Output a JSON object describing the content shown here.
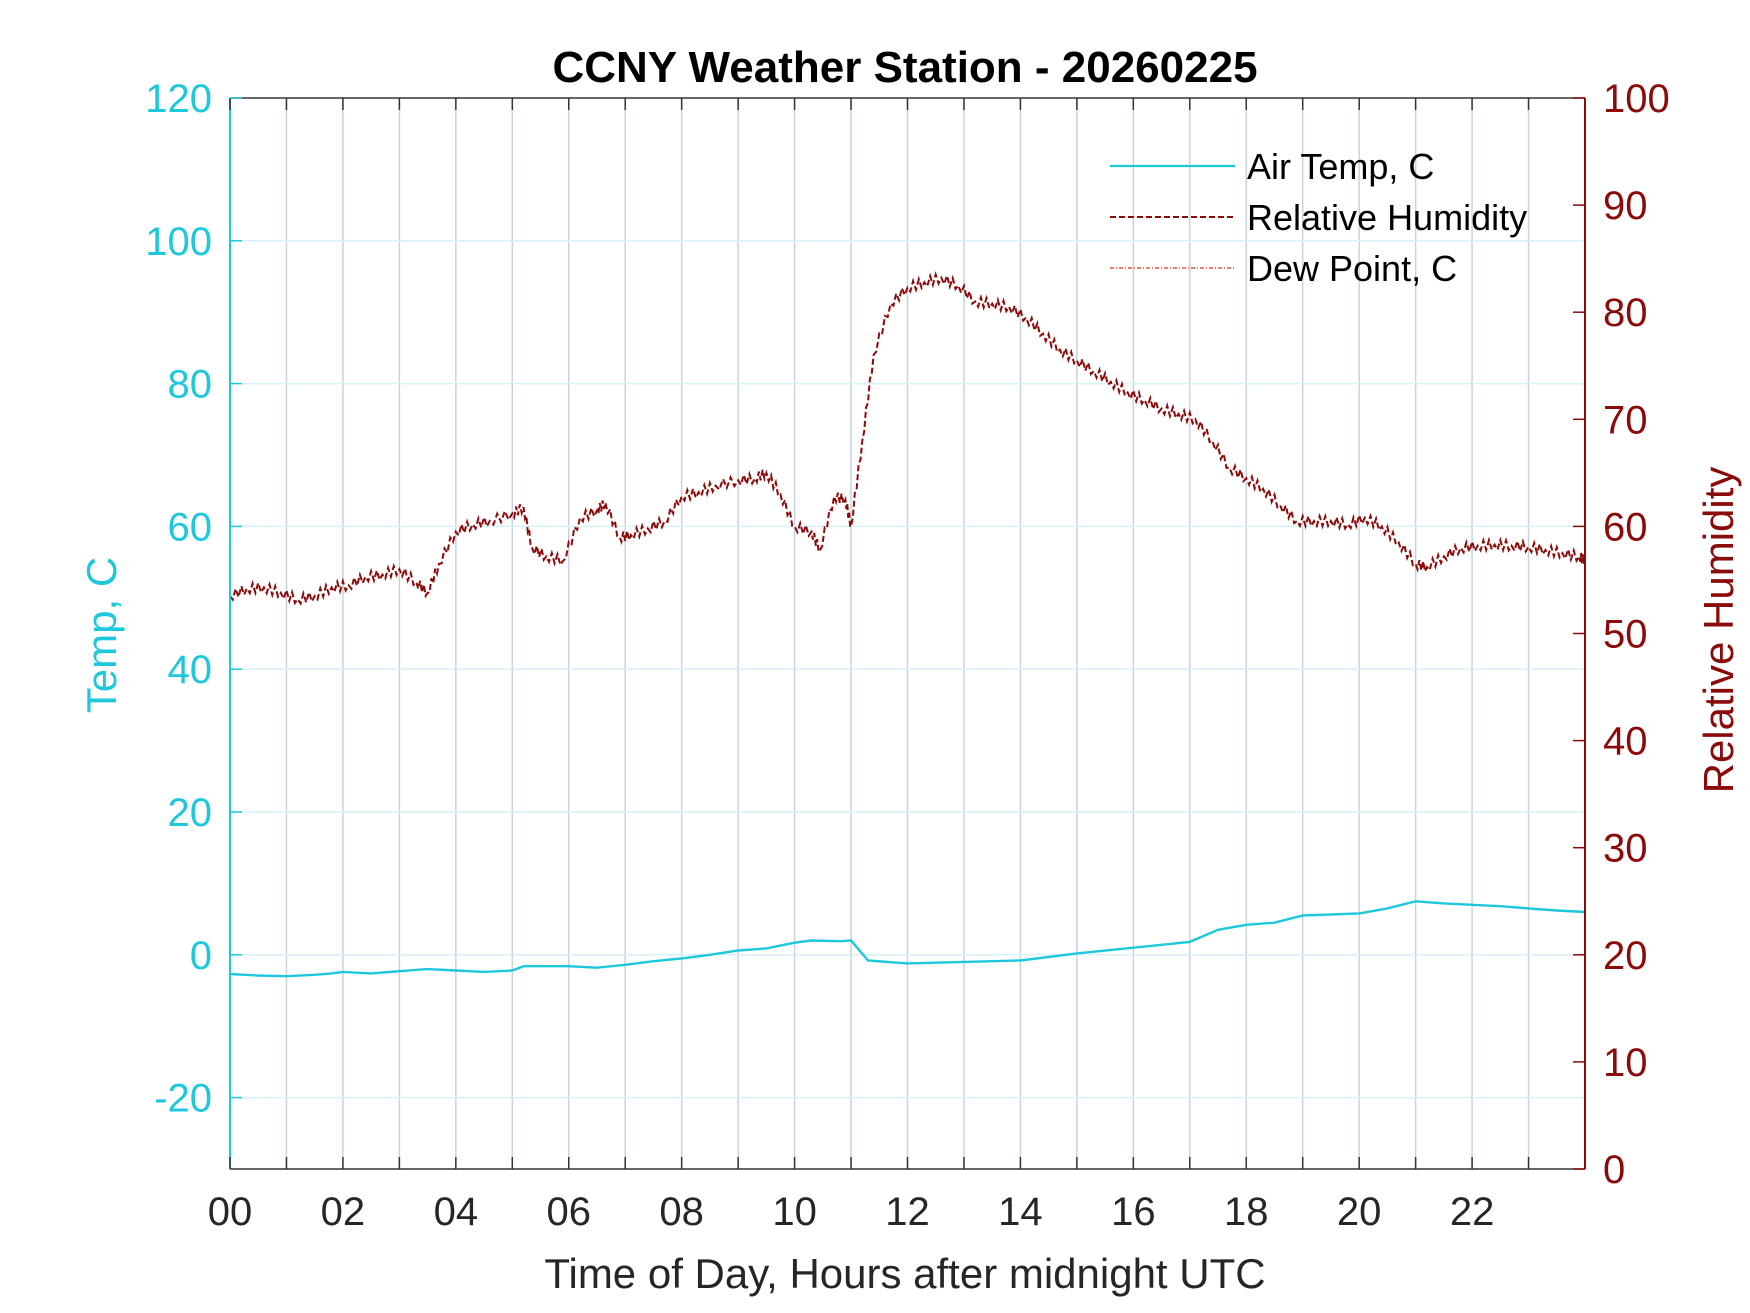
{
  "chart_data": {
    "type": "line",
    "title": "CCNY Weather Station - 20260225",
    "xlabel": "Time of Day, Hours after midnight UTC",
    "ylabel_left": "Temp, C",
    "ylabel_right": "Relative Humidity",
    "xlim": [
      0,
      24
    ],
    "ylim_left": [
      -30,
      120
    ],
    "ylim_right": [
      0,
      100
    ],
    "x_ticks": [
      0,
      2,
      4,
      6,
      8,
      10,
      12,
      14,
      16,
      18,
      20,
      22
    ],
    "x_tick_labels": [
      "00",
      "02",
      "04",
      "06",
      "08",
      "10",
      "12",
      "14",
      "16",
      "18",
      "20",
      "22"
    ],
    "y_left_ticks": [
      -20,
      0,
      20,
      40,
      60,
      80,
      100,
      120
    ],
    "y_left_tick_labels": [
      "-20",
      "0",
      "20",
      "40",
      "60",
      "80",
      "100",
      "120"
    ],
    "y_right_ticks": [
      0,
      10,
      20,
      30,
      40,
      50,
      60,
      70,
      80,
      90,
      100
    ],
    "y_right_tick_labels": [
      "0",
      "10",
      "20",
      "30",
      "40",
      "50",
      "60",
      "70",
      "80",
      "90",
      "100"
    ],
    "grid": true,
    "legend_position": "top-right",
    "colors": {
      "temp": "#1ec8dc",
      "humidity": "#8b0a0a",
      "dewpoint": "#e8503a",
      "grid_vertical": "#c8d4dc",
      "grid_horizontal": "#d6f2f8",
      "axis": "#333333"
    },
    "series": [
      {
        "name": "Air Temp, C",
        "axis": "left",
        "style": "solid",
        "x": [
          0,
          0.5,
          1,
          1.5,
          1.8,
          2,
          2.5,
          3,
          3.5,
          4,
          4.5,
          5,
          5.2,
          6,
          6.5,
          7,
          7.5,
          8,
          8.5,
          9,
          9.5,
          10,
          10.3,
          10.8,
          11,
          11.3,
          12,
          13,
          14,
          15,
          16,
          17,
          17.5,
          18,
          18.5,
          19,
          20,
          20.5,
          21,
          21.5,
          22,
          22.5,
          23,
          23.5,
          24
        ],
        "y": [
          -2.7,
          -2.9,
          -3.0,
          -2.8,
          -2.6,
          -2.4,
          -2.6,
          -2.3,
          -2.0,
          -2.2,
          -2.4,
          -2.2,
          -1.6,
          -1.6,
          -1.8,
          -1.4,
          -0.9,
          -0.5,
          0.0,
          0.6,
          0.9,
          1.7,
          2.0,
          1.9,
          2.0,
          -0.8,
          -1.2,
          -1.0,
          -0.8,
          0.2,
          1.0,
          1.8,
          3.5,
          4.2,
          4.5,
          5.5,
          5.8,
          6.5,
          7.5,
          7.2,
          7.0,
          6.8,
          6.5,
          6.2,
          6.0
        ],
        "samples": [
          -2.7,
          -2.9,
          -3.0,
          -2.8,
          -2.6,
          -2.4,
          -2.6,
          -2.3,
          -2.0,
          -2.2,
          -2.4,
          -2.2,
          -1.6,
          -1.6,
          -1.8,
          -1.4,
          -0.9,
          -0.5,
          0.0,
          0.6,
          0.9,
          1.7,
          2.0,
          1.9,
          2.0,
          -0.8,
          -1.2,
          -1.0,
          -0.8,
          0.2,
          1.0,
          1.8,
          3.5,
          4.2,
          4.5,
          5.5,
          5.8,
          6.5,
          7.5,
          7.2,
          7.0,
          6.8,
          6.5,
          6.2,
          6.0
        ]
      },
      {
        "name": "Relative Humidity",
        "axis": "right",
        "style": "dashed",
        "x": [
          0,
          0.3,
          0.6,
          0.9,
          1.2,
          1.5,
          1.8,
          2.1,
          2.4,
          2.7,
          3.0,
          3.3,
          3.5,
          3.7,
          4.0,
          4.3,
          4.6,
          5.0,
          5.2,
          5.35,
          5.6,
          5.9,
          6.2,
          6.5,
          6.65,
          6.9,
          7.1,
          7.4,
          7.7,
          8.0,
          8.3,
          8.6,
          9.0,
          9.3,
          9.5,
          9.75,
          10.0,
          10.3,
          10.45,
          10.7,
          10.9,
          11.0,
          11.2,
          11.4,
          11.7,
          12.0,
          12.3,
          12.6,
          12.9,
          13.2,
          13.5,
          13.8,
          14.1,
          14.4,
          14.7,
          15.0,
          15.3,
          15.6,
          15.9,
          16.2,
          16.5,
          16.8,
          17.1,
          17.4,
          17.7,
          18.0,
          18.3,
          18.6,
          18.9,
          19.2,
          19.5,
          19.8,
          20.1,
          20.4,
          20.7,
          21.0,
          21.2,
          21.5,
          21.8,
          22.1,
          22.4,
          22.7,
          23.0,
          23.3,
          23.6,
          23.9,
          24.0
        ],
        "y": [
          53.5,
          54.2,
          54.3,
          53.8,
          53.2,
          53.5,
          54.3,
          54.5,
          55.3,
          55.5,
          56.0,
          54.8,
          53.8,
          56.5,
          59.5,
          60.2,
          60.5,
          61.2,
          61.8,
          58.0,
          57.2,
          56.8,
          60.8,
          61.5,
          62.2,
          59.0,
          59.2,
          59.8,
          60.5,
          62.8,
          63.2,
          63.8,
          64.3,
          64.5,
          65.0,
          63.0,
          60.0,
          59.5,
          57.8,
          62.8,
          62.5,
          60.0,
          68.0,
          76.0,
          80.8,
          82.3,
          82.8,
          83.2,
          82.5,
          81.0,
          80.8,
          80.5,
          79.5,
          78.0,
          76.5,
          75.5,
          74.5,
          73.5,
          72.5,
          71.8,
          71.0,
          70.5,
          70.0,
          68.0,
          65.5,
          64.5,
          63.5,
          62.0,
          60.5,
          60.5,
          60.5,
          60.2,
          60.8,
          60.0,
          58.5,
          56.5,
          56.2,
          57.2,
          58.0,
          58.2,
          58.3,
          58.2,
          58.1,
          57.8,
          57.5,
          57.2,
          56.8
        ],
        "samples": [
          53.5,
          54.2,
          54.3,
          53.8,
          53.2,
          53.5,
          54.3,
          54.5,
          55.3,
          55.5,
          56.0,
          54.8,
          53.8,
          56.5,
          59.5,
          60.2,
          60.5,
          61.2,
          61.8,
          58.0,
          57.2,
          56.8,
          60.8,
          61.5,
          62.2,
          59.0,
          59.2,
          59.8,
          60.5,
          62.8,
          63.2,
          63.8,
          64.3,
          64.5,
          65.0,
          63.0,
          60.0,
          59.5,
          57.8,
          62.8,
          62.5,
          60.0,
          68.0,
          76.0,
          80.8,
          82.3,
          82.8,
          83.2,
          82.5,
          81.0,
          80.8,
          80.5,
          79.5,
          78.0,
          76.5,
          75.5,
          74.5,
          73.5,
          72.5,
          71.8,
          71.0,
          70.5,
          70.0,
          68.0,
          65.5,
          64.5,
          63.5,
          62.0,
          60.5,
          60.5,
          60.5,
          60.2,
          60.8,
          60.0,
          58.5,
          56.5,
          56.2,
          57.2,
          58.0,
          58.2,
          58.3,
          58.2,
          58.1,
          57.8,
          57.5,
          57.2,
          56.8
        ]
      },
      {
        "name": "Dew Point, C",
        "axis": "left",
        "style": "dash-dot",
        "x": [],
        "y": []
      }
    ]
  }
}
